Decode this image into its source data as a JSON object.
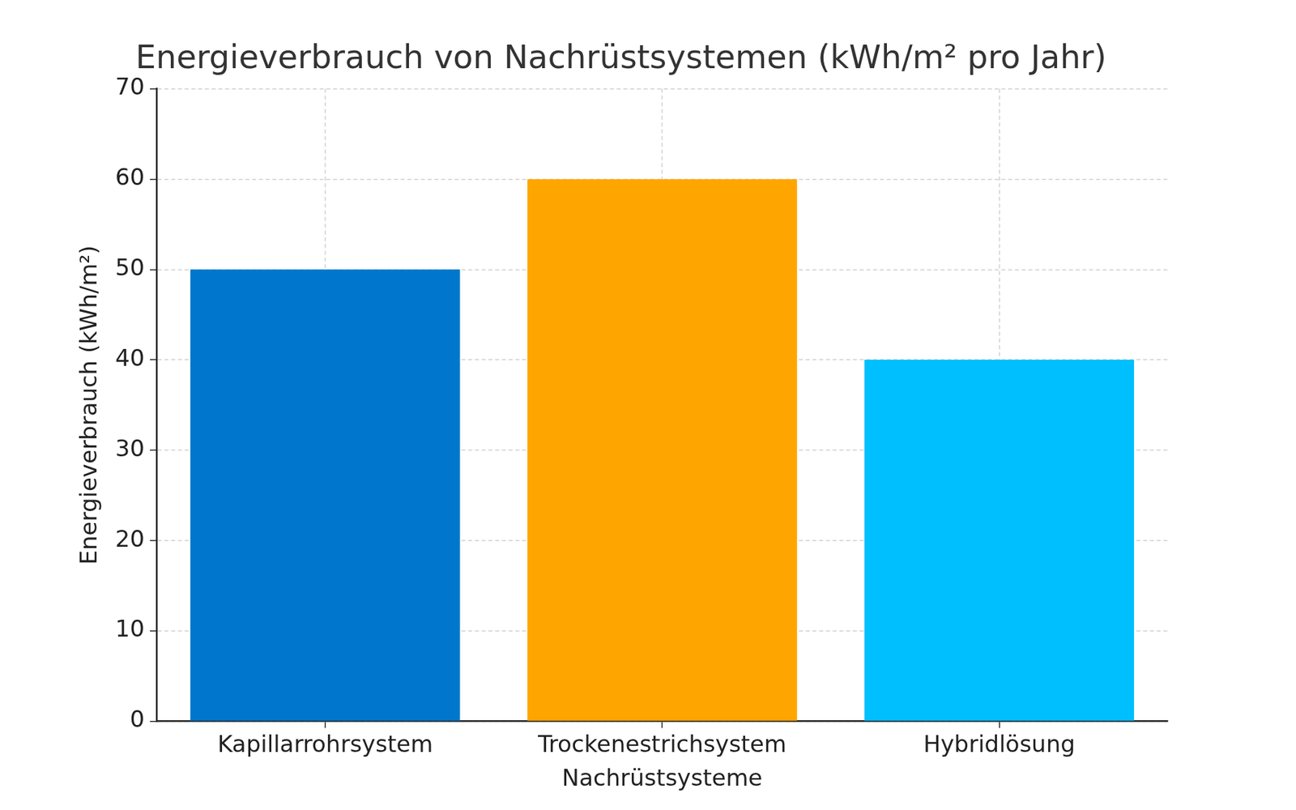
{
  "chart_data": {
    "type": "bar",
    "title": "Energieverbrauch von Nachrüstsystemen (kWh/m² pro Jahr)",
    "x_label": "Nachrüstsysteme",
    "y_label": "Energieverbrauch (kWh/m²)",
    "categories": [
      "Kapillarrohrsystem",
      "Trockenestrichsystem",
      "Hybridlösung"
    ],
    "values": [
      50,
      60,
      40
    ],
    "colors": [
      "#0077cc",
      "#ffa500",
      "#00bfff"
    ],
    "ylim": [
      0,
      70
    ],
    "yticks": [
      0,
      10,
      20,
      30,
      40,
      50,
      60,
      70
    ],
    "grid": true
  }
}
